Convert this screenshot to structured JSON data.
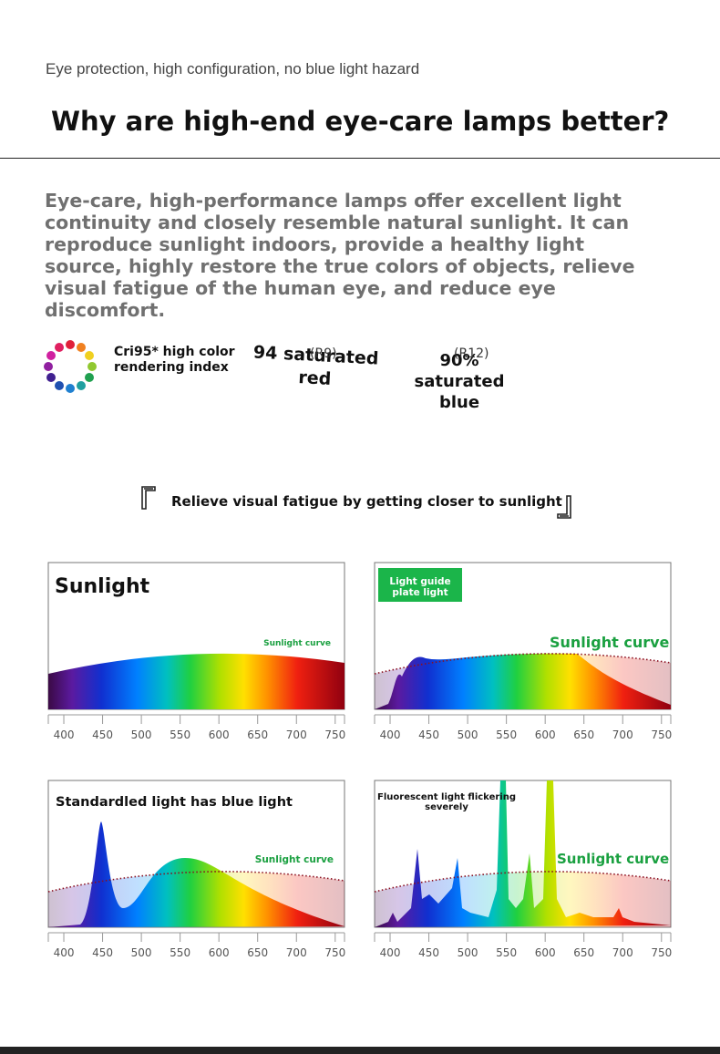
{
  "header": {
    "subtitle": "Eye protection, high configuration, no blue light hazard",
    "title": "Why are high-end eye-care lamps better?"
  },
  "intro": "Eye-care, high-performance lamps offer excellent light continuity and closely resemble natural sunlight. It can reproduce sunlight indoors, provide a healthy light source, highly restore the true colors of objects, relieve visual fatigue of the human eye, and reduce eye discomfort.",
  "features": [
    {
      "label": "Cri95* high color rendering index"
    },
    {
      "label": "94 saturated red",
      "note": "(R9)"
    },
    {
      "label": "90% saturated blue",
      "note": "(R12)"
    }
  ],
  "section_title": "Relieve visual fatigue by getting closer to sunlight",
  "xlim": [
    380,
    762
  ],
  "xticks": [
    400,
    450,
    500,
    550,
    600,
    650,
    700,
    750
  ],
  "panels": [
    {
      "title": "Sunlight",
      "curve_label": "Sunlight curve"
    },
    {
      "title": "Light guide plate light",
      "curve_label": "Sunlight curve"
    },
    {
      "title": "Standardled light has blue light",
      "curve_label": "Sunlight curve"
    },
    {
      "title": "Fluorescent light flickering severely",
      "curve_label": "Sunlight curve"
    }
  ]
}
